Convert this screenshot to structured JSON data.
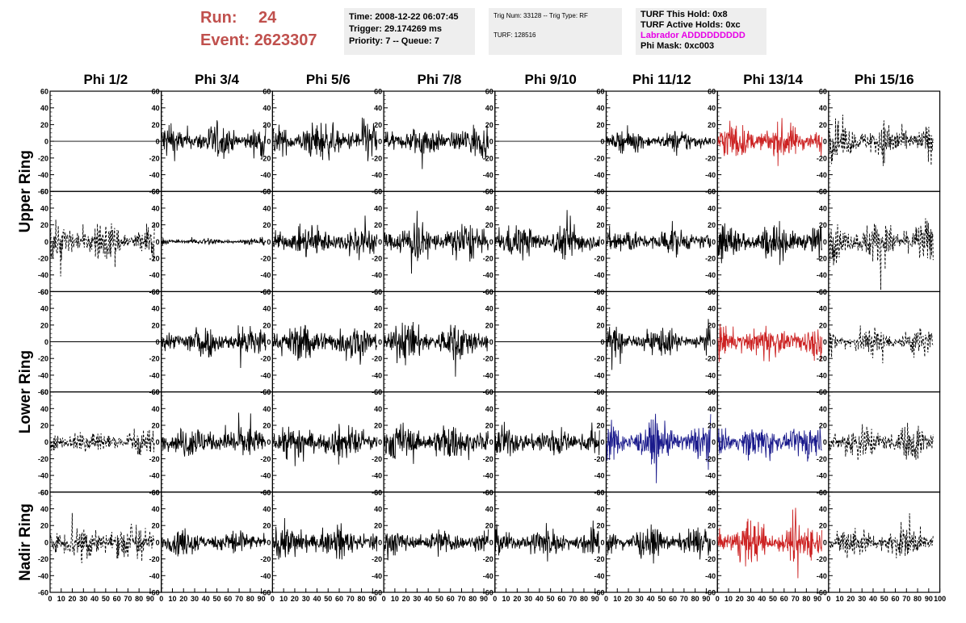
{
  "header": {
    "run_label": "Run:",
    "run_value": "24",
    "event_label": "Event:",
    "event_value": "2623307",
    "time_text": "Time: 2008-12-22 06:07:45",
    "trigger_text": "Trigger: 29.174269 ms",
    "priority_text": "Priority: 7 -- Queue: 7",
    "trig_num_text": "Trig Num: 33128 -- Trig Type: RF",
    "turf_text": "TURF: 128516",
    "turf_hold_text": "TURF This Hold: 0x8",
    "turf_active_text": "TURF Active Holds: 0xc",
    "labrador_text": "Labrador ADDDDDDDDD",
    "phi_mask_text": "Phi Mask: 0xc003",
    "labrador_color": "#e600e6"
  },
  "chart_data": {
    "type": "line",
    "columns": [
      "Phi 1/2",
      "Phi 3/4",
      "Phi 5/6",
      "Phi 7/8",
      "Phi 9/10",
      "Phi 11/12",
      "Phi 13/14",
      "Phi 15/16"
    ],
    "ring_labels": [
      {
        "name": "Upper Ring",
        "rows": [
          0,
          1
        ]
      },
      {
        "name": "Lower Ring",
        "rows": [
          2,
          3
        ]
      },
      {
        "name": "Nadir Ring",
        "rows": [
          4
        ]
      }
    ],
    "xlim": [
      0,
      100
    ],
    "ylim": [
      -60,
      60
    ],
    "y_ticks": [
      -60,
      -40,
      -20,
      0,
      20,
      40,
      60
    ],
    "x_ticks": [
      0,
      10,
      20,
      30,
      40,
      50,
      60,
      70,
      80,
      90,
      100
    ],
    "style_colors": {
      "black": "#000000",
      "red": "#cc2222",
      "blue": "#1a1a8c"
    },
    "panels": [
      [
        {
          "style": "flat",
          "color": "black",
          "amp": 0
        },
        {
          "style": "noise",
          "color": "black",
          "amp": 14
        },
        {
          "style": "noise",
          "color": "black",
          "amp": 16
        },
        {
          "style": "noise",
          "color": "black",
          "amp": 13
        },
        {
          "style": "flat",
          "color": "black",
          "amp": 0
        },
        {
          "style": "noise",
          "color": "black",
          "amp": 9
        },
        {
          "style": "noise",
          "color": "red",
          "amp": 15
        },
        {
          "style": "dashed",
          "color": "black",
          "amp": 16
        }
      ],
      [
        {
          "style": "dashed",
          "color": "black",
          "amp": 16
        },
        {
          "style": "noise",
          "color": "black",
          "amp": 3
        },
        {
          "style": "noise",
          "color": "black",
          "amp": 14
        },
        {
          "style": "noise",
          "color": "black",
          "amp": 16
        },
        {
          "style": "noise",
          "color": "black",
          "amp": 14
        },
        {
          "style": "noise",
          "color": "black",
          "amp": 11
        },
        {
          "style": "noise",
          "color": "black",
          "amp": 15
        },
        {
          "style": "dashed",
          "color": "black",
          "amp": 17
        }
      ],
      [
        {
          "style": "flat",
          "color": "black",
          "amp": 0
        },
        {
          "style": "noise",
          "color": "black",
          "amp": 14
        },
        {
          "style": "noise",
          "color": "black",
          "amp": 16
        },
        {
          "style": "noise",
          "color": "black",
          "amp": 16
        },
        {
          "style": "flat",
          "color": "black",
          "amp": 0
        },
        {
          "style": "noise",
          "color": "black",
          "amp": 11
        },
        {
          "style": "noise",
          "color": "red",
          "amp": 14
        },
        {
          "style": "dashed",
          "color": "black",
          "amp": 12
        }
      ],
      [
        {
          "style": "dashed",
          "color": "black",
          "amp": 11
        },
        {
          "style": "noise",
          "color": "black",
          "amp": 14
        },
        {
          "style": "noise",
          "color": "black",
          "amp": 14
        },
        {
          "style": "noise",
          "color": "black",
          "amp": 15
        },
        {
          "style": "noise",
          "color": "black",
          "amp": 13
        },
        {
          "style": "noise",
          "color": "blue",
          "amp": 16
        },
        {
          "style": "noise",
          "color": "blue",
          "amp": 14
        },
        {
          "style": "dashed",
          "color": "black",
          "amp": 15
        }
      ],
      [
        {
          "style": "dashed",
          "color": "black",
          "amp": 17
        },
        {
          "style": "noise",
          "color": "black",
          "amp": 11
        },
        {
          "style": "noise",
          "color": "black",
          "amp": 13
        },
        {
          "style": "noise",
          "color": "black",
          "amp": 11
        },
        {
          "style": "noise",
          "color": "black",
          "amp": 12
        },
        {
          "style": "noise",
          "color": "black",
          "amp": 12
        },
        {
          "style": "noise",
          "color": "red",
          "amp": 17
        },
        {
          "style": "dashed",
          "color": "black",
          "amp": 13
        }
      ]
    ]
  }
}
